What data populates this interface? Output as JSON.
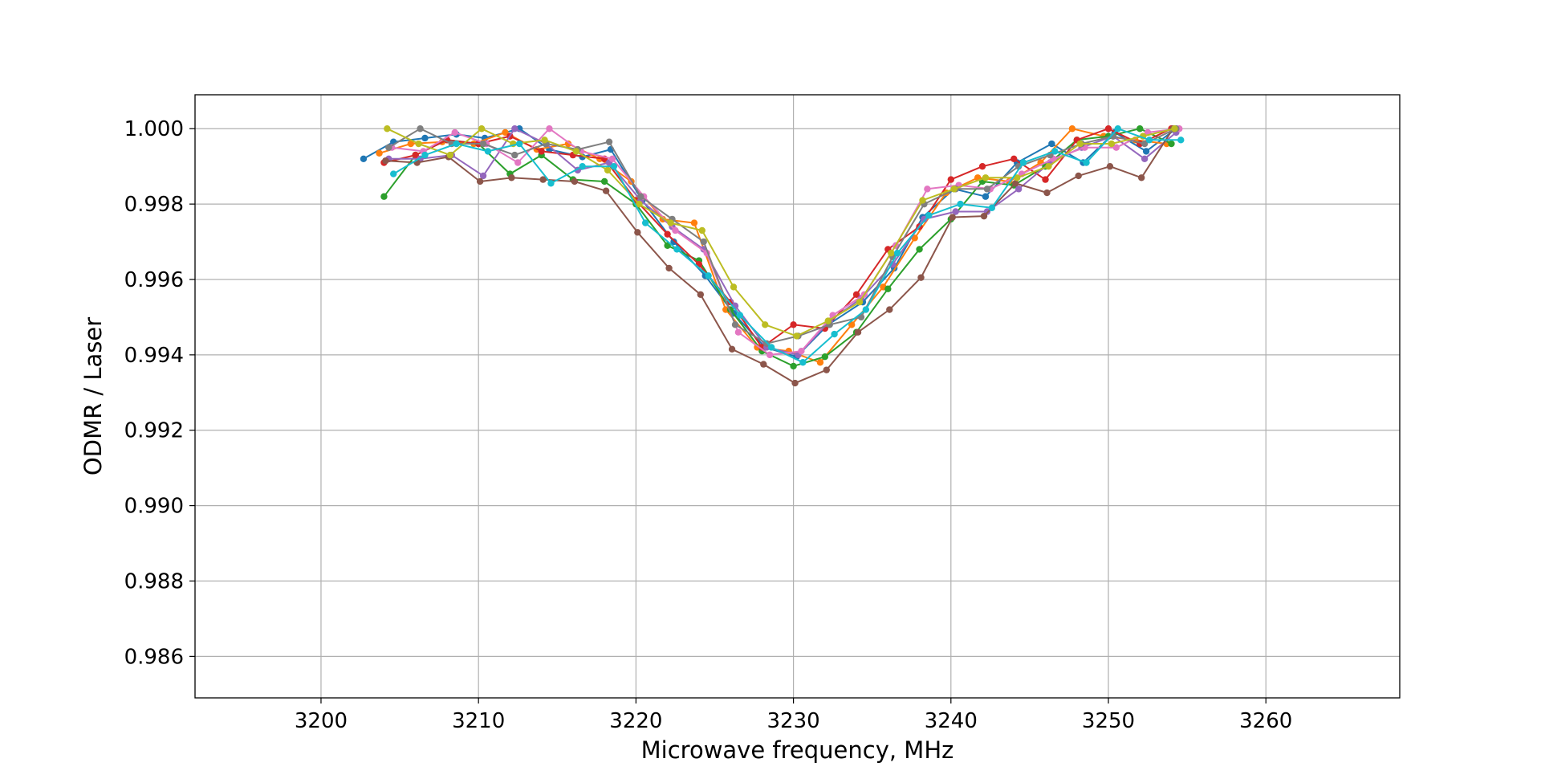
{
  "chart_data": {
    "type": "line",
    "title": "",
    "xlabel": "Microwave frequency, MHz",
    "ylabel": "ODMR / Laser",
    "xlim": [
      3192,
      3268.5
    ],
    "ylim": [
      0.9849,
      1.0009
    ],
    "x_ticks": [
      3200,
      3210,
      3220,
      3230,
      3240,
      3250,
      3260
    ],
    "x_tick_labels": [
      "3200",
      "3210",
      "3220",
      "3230",
      "3240",
      "3250",
      "3260"
    ],
    "y_ticks": [
      0.986,
      0.988,
      0.99,
      0.992,
      0.994,
      0.996,
      0.998,
      1.0
    ],
    "y_tick_labels": [
      "0.986",
      "0.988",
      "0.990",
      "0.992",
      "0.994",
      "0.996",
      "0.998",
      "1.000"
    ],
    "grid": true,
    "legend": "none",
    "marker": "circle",
    "series": [
      {
        "color": "#1f77b4",
        "x": [
          3202.7,
          3204.6,
          3206.6,
          3208.6,
          3210.4,
          3212.6,
          3214.5,
          3216.6,
          3218.4,
          3220.4,
          3222.4,
          3224.4,
          3226.2,
          3228.2,
          3230.2,
          3232.2,
          3234.4,
          3236.4,
          3238.2,
          3240.2,
          3242.2,
          3244.2,
          3246.4,
          3248.4,
          3250.4,
          3252.4,
          3254.3
        ],
        "y": [
          0.9992,
          0.99965,
          0.99975,
          0.99985,
          0.99975,
          1.0,
          0.99945,
          0.99925,
          0.99945,
          0.9981,
          0.997,
          0.9961,
          0.9951,
          0.9942,
          0.99395,
          0.9948,
          0.9954,
          0.9963,
          0.99765,
          0.9984,
          0.9982,
          0.9991,
          0.9996,
          0.9991,
          0.9999,
          0.9994,
          1.0
        ]
      },
      {
        "color": "#ff7f0e",
        "x": [
          3203.7,
          3205.7,
          3207.7,
          3209.7,
          3211.7,
          3213.7,
          3215.7,
          3217.7,
          3219.7,
          3221.7,
          3223.7,
          3225.7,
          3227.7,
          3229.7,
          3231.7,
          3233.7,
          3235.7,
          3237.7,
          3239.7,
          3241.7,
          3243.7,
          3245.7,
          3247.7,
          3249.7,
          3251.7,
          3253.7
        ],
        "y": [
          0.99935,
          0.9996,
          0.99965,
          0.9996,
          0.9999,
          0.99945,
          0.9996,
          0.9992,
          0.9986,
          0.9976,
          0.9975,
          0.9952,
          0.9942,
          0.9941,
          0.9938,
          0.9948,
          0.9958,
          0.9971,
          0.9983,
          0.9987,
          0.9986,
          0.9991,
          1.0,
          0.9998,
          0.9997,
          0.9996
        ]
      },
      {
        "color": "#2ca02c",
        "x": [
          3204.0,
          3206.0,
          3208.0,
          3210.0,
          3212.0,
          3214.0,
          3216.0,
          3218.0,
          3220.0,
          3222.0,
          3224.0,
          3226.0,
          3228.0,
          3230.0,
          3232.0,
          3234.0,
          3236.0,
          3238.0,
          3240.0,
          3242.0,
          3244.0,
          3246.0,
          3248.0,
          3250.0,
          3252.0,
          3254.0
        ],
        "y": [
          0.9982,
          0.9993,
          0.9997,
          0.9996,
          0.9988,
          0.9993,
          0.99865,
          0.9986,
          0.998,
          0.9969,
          0.9965,
          0.9952,
          0.9941,
          0.9937,
          0.99395,
          0.9946,
          0.99575,
          0.9968,
          0.9976,
          0.9986,
          0.9985,
          0.999,
          0.9997,
          0.9998,
          1.0,
          0.9996
        ]
      },
      {
        "color": "#d62728",
        "x": [
          3204.0,
          3206.0,
          3208.0,
          3210.0,
          3212.0,
          3214.0,
          3216.0,
          3218.0,
          3220.0,
          3222.0,
          3224.0,
          3226.0,
          3228.0,
          3230.0,
          3232.0,
          3234.0,
          3236.0,
          3238.0,
          3240.0,
          3242.0,
          3244.0,
          3246.0,
          3248.0,
          3250.0,
          3252.0,
          3254.0
        ],
        "y": [
          0.9991,
          0.9993,
          0.9997,
          0.9996,
          0.9998,
          0.9994,
          0.9993,
          0.9992,
          0.9981,
          0.9972,
          0.9964,
          0.9954,
          0.9942,
          0.9948,
          0.9947,
          0.9956,
          0.9968,
          0.9974,
          0.99865,
          0.999,
          0.9992,
          0.99865,
          0.9997,
          1.0,
          0.9996,
          1.0
        ]
      },
      {
        "color": "#9467bd",
        "x": [
          3204.3,
          3206.3,
          3208.3,
          3210.3,
          3212.3,
          3214.3,
          3216.3,
          3218.3,
          3220.3,
          3222.3,
          3224.3,
          3226.3,
          3228.3,
          3230.3,
          3232.3,
          3234.3,
          3236.3,
          3238.3,
          3240.3,
          3242.3,
          3244.3,
          3246.3,
          3248.3,
          3250.3,
          3252.3,
          3254.3
        ],
        "y": [
          0.9992,
          0.9992,
          0.9993,
          0.99875,
          1.0,
          0.9996,
          0.9989,
          0.9991,
          0.9981,
          0.9974,
          0.9968,
          0.9953,
          0.9942,
          0.994,
          0.9949,
          0.9955,
          0.9964,
          0.9976,
          0.9978,
          0.9978,
          0.9984,
          0.9991,
          0.9995,
          0.9998,
          0.9992,
          0.9999
        ]
      },
      {
        "color": "#8c564b",
        "x": [
          3204.1,
          3206.1,
          3208.1,
          3210.1,
          3212.1,
          3214.1,
          3216.1,
          3218.1,
          3220.1,
          3222.1,
          3224.1,
          3226.1,
          3228.1,
          3230.1,
          3232.1,
          3234.1,
          3236.1,
          3238.1,
          3240.1,
          3242.1,
          3244.1,
          3246.1,
          3248.1,
          3250.1,
          3252.1,
          3254.1
        ],
        "y": [
          0.99915,
          0.9991,
          0.99925,
          0.9986,
          0.9987,
          0.99865,
          0.9986,
          0.99835,
          0.99725,
          0.9963,
          0.9956,
          0.99415,
          0.99375,
          0.99325,
          0.9936,
          0.9946,
          0.9952,
          0.99605,
          0.99765,
          0.99768,
          0.99855,
          0.9983,
          0.99875,
          0.999,
          0.9987,
          1.0
        ]
      },
      {
        "color": "#e377c2",
        "x": [
          3204.5,
          3206.5,
          3208.5,
          3210.5,
          3212.5,
          3214.5,
          3216.5,
          3218.5,
          3220.5,
          3222.5,
          3224.5,
          3226.5,
          3228.5,
          3230.5,
          3232.5,
          3234.5,
          3236.5,
          3238.5,
          3240.5,
          3242.5,
          3244.5,
          3246.5,
          3248.5,
          3250.5,
          3252.5,
          3254.5
        ],
        "y": [
          0.9995,
          0.9994,
          0.9999,
          0.9996,
          0.9991,
          1.0,
          0.9994,
          0.9992,
          0.9982,
          0.9973,
          0.9967,
          0.9946,
          0.994,
          0.9941,
          0.99505,
          0.9956,
          0.9969,
          0.9984,
          0.9985,
          0.9984,
          0.9988,
          0.9992,
          0.9995,
          0.9995,
          0.9999,
          1.0
        ]
      },
      {
        "color": "#7f7f7f",
        "x": [
          3204.3,
          3206.3,
          3208.3,
          3210.3,
          3212.3,
          3214.3,
          3216.3,
          3218.3,
          3220.3,
          3222.3,
          3224.3,
          3226.3,
          3228.3,
          3230.3,
          3232.3,
          3234.3,
          3236.3,
          3238.3,
          3240.3,
          3242.3,
          3244.3,
          3246.3,
          3248.3,
          3250.3,
          3252.3,
          3254.3
        ],
        "y": [
          0.9995,
          1.0,
          0.9996,
          0.9996,
          0.9993,
          0.9996,
          0.99945,
          0.99965,
          0.9982,
          0.9976,
          0.997,
          0.9948,
          0.9943,
          0.9945,
          0.9948,
          0.995,
          0.9966,
          0.998,
          0.9984,
          0.9984,
          0.999,
          0.9993,
          0.9996,
          0.9998,
          0.9996,
          1.0
        ]
      },
      {
        "color": "#bcbd22",
        "x": [
          3204.2,
          3206.2,
          3208.2,
          3210.2,
          3212.2,
          3214.2,
          3216.2,
          3218.2,
          3220.2,
          3222.2,
          3224.2,
          3226.2,
          3228.2,
          3230.2,
          3232.2,
          3234.2,
          3236.2,
          3238.2,
          3240.2,
          3242.2,
          3244.2,
          3246.2,
          3248.2,
          3250.2,
          3252.2,
          3254.2
        ],
        "y": [
          1.0,
          0.9996,
          0.9993,
          1.0,
          0.9996,
          0.9997,
          0.9994,
          0.9989,
          0.998,
          0.9975,
          0.9973,
          0.9958,
          0.9948,
          0.9945,
          0.9949,
          0.9954,
          0.9967,
          0.9981,
          0.9984,
          0.9987,
          0.9987,
          0.999,
          0.9996,
          0.9996,
          0.9998,
          1.0
        ]
      },
      {
        "color": "#17becf",
        "x": [
          3204.6,
          3206.6,
          3208.6,
          3210.6,
          3212.6,
          3214.6,
          3216.6,
          3218.6,
          3220.6,
          3222.6,
          3224.6,
          3226.6,
          3228.6,
          3230.6,
          3232.6,
          3234.6,
          3236.6,
          3238.6,
          3240.6,
          3242.6,
          3244.6,
          3246.6,
          3248.6,
          3250.6,
          3252.6,
          3254.6
        ],
        "y": [
          0.9988,
          0.9993,
          0.9996,
          0.9994,
          0.9996,
          0.99855,
          0.999,
          0.999,
          0.9975,
          0.9968,
          0.9961,
          0.99505,
          0.9942,
          0.9938,
          0.99455,
          0.9952,
          0.9967,
          0.9977,
          0.998,
          0.9979,
          0.9991,
          0.9994,
          0.9991,
          1.0,
          0.9997,
          0.9997
        ]
      }
    ]
  }
}
